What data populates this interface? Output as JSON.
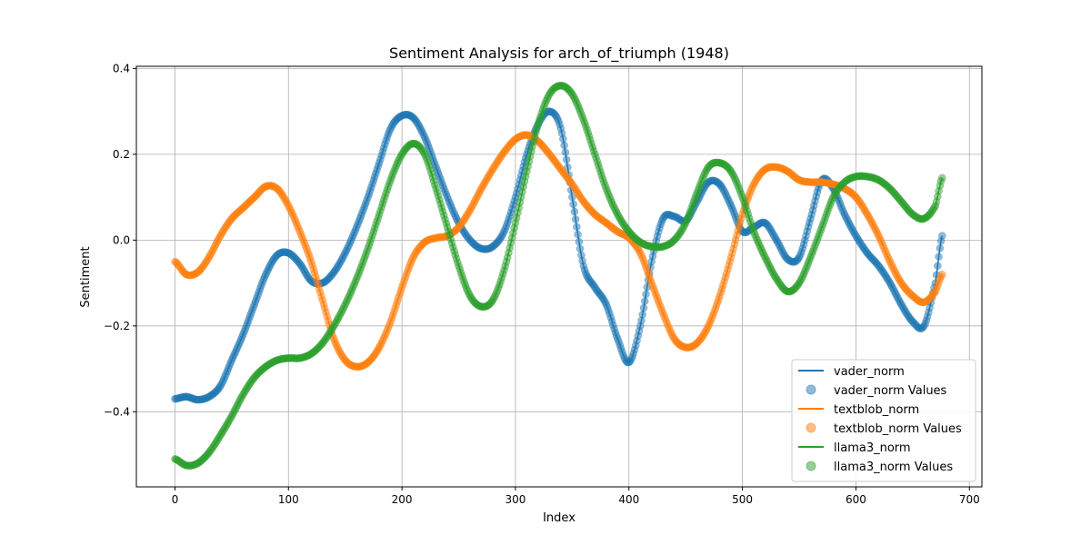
{
  "chart_data": {
    "type": "line",
    "title": "Sentiment Analysis for arch_of_triumph (1948)",
    "xlabel": "Index",
    "ylabel": "Sentiment",
    "xlim": [
      -34,
      711
    ],
    "ylim": [
      -0.575,
      0.405
    ],
    "xticks": [
      0,
      100,
      200,
      300,
      400,
      500,
      600,
      700
    ],
    "yticks": [
      -0.4,
      -0.2,
      0.0,
      0.2,
      0.4
    ],
    "xtick_labels": [
      "0",
      "100",
      "200",
      "300",
      "400",
      "500",
      "600",
      "700"
    ],
    "ytick_labels": [
      "−0.4",
      "−0.2",
      "0.0",
      "0.2",
      "0.4"
    ],
    "grid": true,
    "legend_position": "lower right",
    "x_max_index": 676,
    "series": [
      {
        "name": "vader_norm",
        "color": "#1f77b4",
        "keypoints": [
          [
            0,
            -0.37
          ],
          [
            10,
            -0.365
          ],
          [
            20,
            -0.372
          ],
          [
            30,
            -0.365
          ],
          [
            40,
            -0.34
          ],
          [
            50,
            -0.28
          ],
          [
            60,
            -0.22
          ],
          [
            70,
            -0.15
          ],
          [
            80,
            -0.08
          ],
          [
            90,
            -0.035
          ],
          [
            100,
            -0.03
          ],
          [
            110,
            -0.055
          ],
          [
            120,
            -0.095
          ],
          [
            130,
            -0.1
          ],
          [
            140,
            -0.075
          ],
          [
            150,
            -0.03
          ],
          [
            160,
            0.03
          ],
          [
            170,
            0.1
          ],
          [
            180,
            0.18
          ],
          [
            190,
            0.26
          ],
          [
            200,
            0.29
          ],
          [
            210,
            0.285
          ],
          [
            220,
            0.24
          ],
          [
            230,
            0.17
          ],
          [
            240,
            0.1
          ],
          [
            250,
            0.04
          ],
          [
            260,
            0.0
          ],
          [
            270,
            -0.02
          ],
          [
            280,
            -0.015
          ],
          [
            290,
            0.02
          ],
          [
            300,
            0.1
          ],
          [
            310,
            0.2
          ],
          [
            320,
            0.27
          ],
          [
            330,
            0.3
          ],
          [
            340,
            0.26
          ],
          [
            350,
            0.1
          ],
          [
            360,
            -0.06
          ],
          [
            370,
            -0.11
          ],
          [
            380,
            -0.15
          ],
          [
            390,
            -0.23
          ],
          [
            400,
            -0.285
          ],
          [
            410,
            -0.2
          ],
          [
            420,
            -0.05
          ],
          [
            430,
            0.05
          ],
          [
            440,
            0.055
          ],
          [
            450,
            0.045
          ],
          [
            460,
            0.09
          ],
          [
            470,
            0.135
          ],
          [
            480,
            0.13
          ],
          [
            490,
            0.08
          ],
          [
            500,
            0.02
          ],
          [
            510,
            0.03
          ],
          [
            520,
            0.04
          ],
          [
            530,
            0.0
          ],
          [
            540,
            -0.045
          ],
          [
            550,
            -0.04
          ],
          [
            560,
            0.05
          ],
          [
            570,
            0.14
          ],
          [
            580,
            0.12
          ],
          [
            590,
            0.06
          ],
          [
            600,
            0.01
          ],
          [
            610,
            -0.03
          ],
          [
            620,
            -0.06
          ],
          [
            630,
            -0.1
          ],
          [
            640,
            -0.15
          ],
          [
            650,
            -0.19
          ],
          [
            660,
            -0.2
          ],
          [
            670,
            -0.1
          ],
          [
            676,
            0.01
          ]
        ]
      },
      {
        "name": "textblob_norm",
        "color": "#ff7f0e",
        "keypoints": [
          [
            0,
            -0.05
          ],
          [
            10,
            -0.08
          ],
          [
            20,
            -0.075
          ],
          [
            30,
            -0.04
          ],
          [
            40,
            0.01
          ],
          [
            50,
            0.05
          ],
          [
            60,
            0.075
          ],
          [
            70,
            0.1
          ],
          [
            80,
            0.125
          ],
          [
            90,
            0.12
          ],
          [
            100,
            0.08
          ],
          [
            110,
            0.02
          ],
          [
            120,
            -0.05
          ],
          [
            130,
            -0.14
          ],
          [
            140,
            -0.23
          ],
          [
            150,
            -0.28
          ],
          [
            160,
            -0.295
          ],
          [
            170,
            -0.285
          ],
          [
            180,
            -0.25
          ],
          [
            190,
            -0.19
          ],
          [
            200,
            -0.11
          ],
          [
            210,
            -0.04
          ],
          [
            220,
            -0.005
          ],
          [
            230,
            0.005
          ],
          [
            240,
            0.01
          ],
          [
            250,
            0.03
          ],
          [
            260,
            0.07
          ],
          [
            270,
            0.12
          ],
          [
            280,
            0.165
          ],
          [
            290,
            0.205
          ],
          [
            300,
            0.235
          ],
          [
            310,
            0.245
          ],
          [
            320,
            0.23
          ],
          [
            330,
            0.2
          ],
          [
            340,
            0.165
          ],
          [
            350,
            0.13
          ],
          [
            360,
            0.09
          ],
          [
            370,
            0.06
          ],
          [
            380,
            0.04
          ],
          [
            390,
            0.02
          ],
          [
            400,
            0.005
          ],
          [
            410,
            -0.03
          ],
          [
            420,
            -0.1
          ],
          [
            430,
            -0.17
          ],
          [
            440,
            -0.23
          ],
          [
            450,
            -0.25
          ],
          [
            460,
            -0.24
          ],
          [
            470,
            -0.2
          ],
          [
            480,
            -0.13
          ],
          [
            490,
            -0.04
          ],
          [
            500,
            0.06
          ],
          [
            510,
            0.13
          ],
          [
            520,
            0.165
          ],
          [
            530,
            0.17
          ],
          [
            540,
            0.16
          ],
          [
            550,
            0.14
          ],
          [
            560,
            0.135
          ],
          [
            570,
            0.135
          ],
          [
            580,
            0.13
          ],
          [
            590,
            0.12
          ],
          [
            600,
            0.1
          ],
          [
            610,
            0.06
          ],
          [
            620,
            0.01
          ],
          [
            630,
            -0.05
          ],
          [
            640,
            -0.1
          ],
          [
            650,
            -0.13
          ],
          [
            660,
            -0.145
          ],
          [
            670,
            -0.12
          ],
          [
            676,
            -0.08
          ]
        ]
      },
      {
        "name": "llama3_norm",
        "color": "#2ca02c",
        "keypoints": [
          [
            0,
            -0.51
          ],
          [
            10,
            -0.525
          ],
          [
            20,
            -0.52
          ],
          [
            30,
            -0.495
          ],
          [
            40,
            -0.455
          ],
          [
            50,
            -0.41
          ],
          [
            60,
            -0.36
          ],
          [
            70,
            -0.32
          ],
          [
            80,
            -0.295
          ],
          [
            90,
            -0.28
          ],
          [
            100,
            -0.275
          ],
          [
            110,
            -0.275
          ],
          [
            120,
            -0.265
          ],
          [
            130,
            -0.24
          ],
          [
            140,
            -0.2
          ],
          [
            150,
            -0.15
          ],
          [
            160,
            -0.09
          ],
          [
            170,
            -0.02
          ],
          [
            180,
            0.06
          ],
          [
            190,
            0.14
          ],
          [
            200,
            0.2
          ],
          [
            210,
            0.225
          ],
          [
            220,
            0.2
          ],
          [
            230,
            0.12
          ],
          [
            240,
            0.03
          ],
          [
            250,
            -0.06
          ],
          [
            260,
            -0.13
          ],
          [
            270,
            -0.155
          ],
          [
            280,
            -0.14
          ],
          [
            290,
            -0.07
          ],
          [
            300,
            0.04
          ],
          [
            310,
            0.16
          ],
          [
            320,
            0.27
          ],
          [
            330,
            0.34
          ],
          [
            340,
            0.36
          ],
          [
            350,
            0.34
          ],
          [
            360,
            0.28
          ],
          [
            370,
            0.2
          ],
          [
            380,
            0.12
          ],
          [
            390,
            0.06
          ],
          [
            400,
            0.02
          ],
          [
            410,
            -0.005
          ],
          [
            420,
            -0.015
          ],
          [
            430,
            -0.015
          ],
          [
            440,
            0.0
          ],
          [
            450,
            0.04
          ],
          [
            460,
            0.11
          ],
          [
            470,
            0.17
          ],
          [
            480,
            0.18
          ],
          [
            490,
            0.16
          ],
          [
            500,
            0.1
          ],
          [
            510,
            0.02
          ],
          [
            520,
            -0.04
          ],
          [
            530,
            -0.09
          ],
          [
            540,
            -0.12
          ],
          [
            550,
            -0.1
          ],
          [
            560,
            -0.04
          ],
          [
            570,
            0.03
          ],
          [
            580,
            0.1
          ],
          [
            590,
            0.135
          ],
          [
            600,
            0.148
          ],
          [
            610,
            0.148
          ],
          [
            620,
            0.14
          ],
          [
            630,
            0.12
          ],
          [
            640,
            0.09
          ],
          [
            650,
            0.06
          ],
          [
            660,
            0.05
          ],
          [
            670,
            0.08
          ],
          [
            676,
            0.145
          ]
        ]
      }
    ],
    "legend": [
      {
        "label": "vader_norm",
        "kind": "line",
        "color": "#1f77b4"
      },
      {
        "label": "vader_norm Values",
        "kind": "marker",
        "color": "#1f77b4"
      },
      {
        "label": "textblob_norm",
        "kind": "line",
        "color": "#ff7f0e"
      },
      {
        "label": "textblob_norm Values",
        "kind": "marker",
        "color": "#ff7f0e"
      },
      {
        "label": "llama3_norm",
        "kind": "line",
        "color": "#2ca02c"
      },
      {
        "label": "llama3_norm Values",
        "kind": "marker",
        "color": "#2ca02c"
      }
    ]
  }
}
